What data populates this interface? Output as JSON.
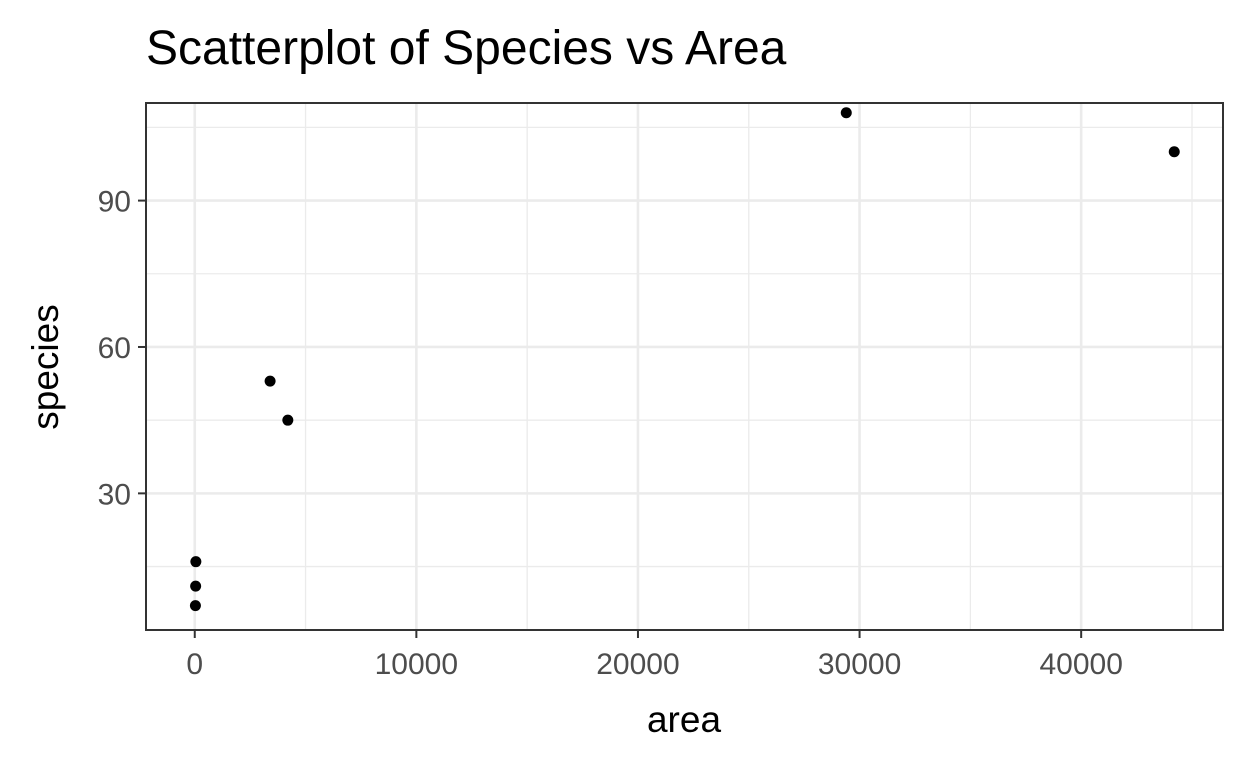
{
  "chart_data": {
    "type": "scatter",
    "title": "Scatterplot of Species vs Area",
    "xlabel": "area",
    "ylabel": "species",
    "xlim": [
      -2200,
      46400
    ],
    "ylim": [
      2,
      110
    ],
    "x_ticks": [
      0,
      10000,
      20000,
      30000,
      40000
    ],
    "x_tick_labels": [
      "0",
      "10000",
      "20000",
      "30000",
      "40000"
    ],
    "x_minor_ticks": [
      5000,
      15000,
      25000,
      35000,
      45000
    ],
    "y_ticks": [
      30,
      60,
      90
    ],
    "y_tick_labels": [
      "30",
      "60",
      "90"
    ],
    "y_minor_ticks": [
      15,
      45,
      75,
      105
    ],
    "grid": true,
    "legend": "none",
    "points": [
      {
        "x": 30,
        "y": 7
      },
      {
        "x": 40,
        "y": 11
      },
      {
        "x": 50,
        "y": 16
      },
      {
        "x": 3400,
        "y": 53
      },
      {
        "x": 4200,
        "y": 45
      },
      {
        "x": 29400,
        "y": 108
      },
      {
        "x": 44200,
        "y": 100
      }
    ],
    "point_color": "#000000",
    "grid_color": "#ebebeb",
    "panel_border_color": "#333333"
  }
}
